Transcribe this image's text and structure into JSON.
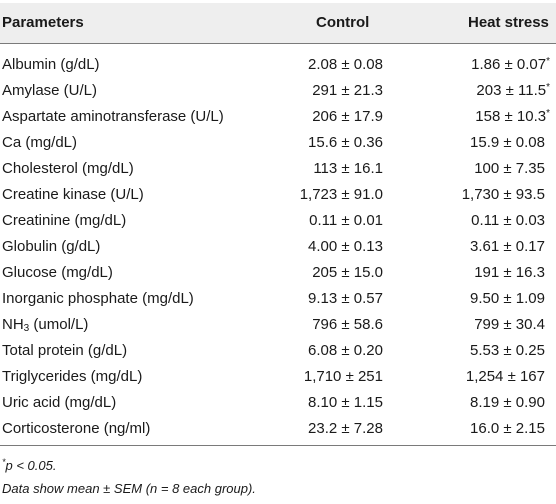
{
  "table": {
    "headers": {
      "parameters": "Parameters",
      "control": "Control",
      "heat_stress": "Heat stress"
    },
    "rows": [
      {
        "parameter": "Albumin (g/dL)",
        "control": "2.08 ± 0.08",
        "heat_stress": "1.86 ± 0.07",
        "mark": "*"
      },
      {
        "parameter": "Amylase (U/L)",
        "control": "291 ± 21.3",
        "heat_stress": "203 ± 11.5",
        "mark": "*"
      },
      {
        "parameter": "Aspartate aminotransferase (U/L)",
        "control": "206 ± 17.9",
        "heat_stress": "158 ± 10.3",
        "mark": "*"
      },
      {
        "parameter": "Ca (mg/dL)",
        "control": "15.6 ± 0.36",
        "heat_stress": "15.9 ± 0.08",
        "mark": ""
      },
      {
        "parameter": "Cholesterol (mg/dL)",
        "control": "113 ± 16.1",
        "heat_stress": "100 ± 7.35",
        "mark": ""
      },
      {
        "parameter": "Creatine kinase (U/L)",
        "control": "1,723 ± 91.0",
        "heat_stress": "1,730 ± 93.5",
        "mark": ""
      },
      {
        "parameter": "Creatinine (mg/dL)",
        "control": "0.11 ± 0.01",
        "heat_stress": "0.11 ± 0.03",
        "mark": ""
      },
      {
        "parameter": "Globulin (g/dL)",
        "control": "4.00 ± 0.13",
        "heat_stress": "3.61 ± 0.17",
        "mark": ""
      },
      {
        "parameter": "Glucose (mg/dL)",
        "control": "205 ± 15.0",
        "heat_stress": "191 ± 16.3",
        "mark": ""
      },
      {
        "parameter": "Inorganic phosphate (mg/dL)",
        "control": "9.13 ± 0.57",
        "heat_stress": "9.50 ± 1.09",
        "mark": ""
      },
      {
        "parameter": "NH",
        "parameter_sub": "3",
        "parameter_tail": " (umol/L)",
        "control": "796 ± 58.6",
        "heat_stress": "799 ± 30.4",
        "mark": ""
      },
      {
        "parameter": "Total protein (g/dL)",
        "control": "6.08 ± 0.20",
        "heat_stress": "5.53 ± 0.25",
        "mark": ""
      },
      {
        "parameter": "Triglycerides (mg/dL)",
        "control": "1,710 ± 251",
        "heat_stress": "1,254 ± 167",
        "mark": ""
      },
      {
        "parameter": "Uric acid (mg/dL)",
        "control": "8.10 ± 1.15",
        "heat_stress": "8.19 ± 0.90",
        "mark": ""
      },
      {
        "parameter": "Corticosterone (ng/ml)",
        "control": "23.2 ± 7.28",
        "heat_stress": "16.0 ± 2.15",
        "mark": ""
      }
    ]
  },
  "notes": {
    "significance_mark": "*",
    "significance_text": "p < 0.05.",
    "data_description": "Data show mean ± SEM (n = 8 each group)."
  },
  "colors": {
    "header_background": "#eeeeee",
    "rule": "#7a7a7a",
    "text": "#1a1a1a"
  }
}
